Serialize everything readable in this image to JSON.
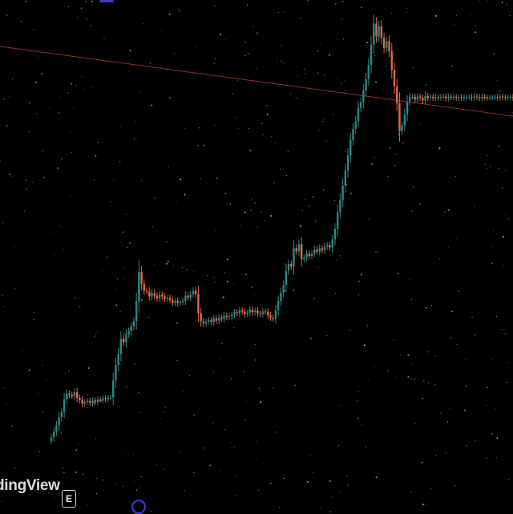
{
  "colors": {
    "background": "#000000",
    "up": "#2a8a86",
    "down": "#e06a44",
    "trendline": "#c0392b",
    "stars": "#9fb3d9"
  },
  "icons": {
    "badge": "E",
    "round_icon": "circle-icon"
  },
  "watermark": "dingView",
  "chart_data": {
    "type": "candlestick",
    "title": "",
    "xlabel": "",
    "ylabel": "",
    "ylim": [
      0,
      100
    ],
    "grid": false,
    "x": [
      0,
      1,
      2,
      3,
      4,
      5,
      6,
      7,
      8,
      9,
      10,
      11,
      12,
      13,
      14,
      15,
      16,
      17,
      18,
      19,
      20,
      21,
      22,
      23,
      24,
      25,
      26,
      27,
      28,
      29,
      30,
      31,
      32,
      33,
      34,
      35,
      36,
      37,
      38,
      39,
      40,
      41,
      42,
      43,
      44,
      45,
      46,
      47,
      48,
      49,
      50,
      51,
      52,
      53,
      54,
      55,
      56,
      57,
      58,
      59,
      60,
      61,
      62,
      63,
      64,
      65,
      66,
      67,
      68,
      69,
      70,
      71,
      72,
      73,
      74,
      75,
      76,
      77,
      78,
      79,
      80,
      81,
      82,
      83,
      84,
      85,
      86,
      87,
      88,
      89,
      90,
      91,
      92,
      93,
      94,
      95,
      96,
      97,
      98,
      99,
      100,
      101,
      102,
      103,
      104,
      105,
      106,
      107,
      108,
      109,
      110,
      111,
      112,
      113,
      114,
      115,
      116,
      117,
      118,
      119,
      120,
      121,
      122,
      123,
      124,
      125,
      126,
      127,
      128,
      129,
      130,
      131,
      132,
      133,
      134,
      135,
      136,
      137,
      138,
      139,
      140,
      141,
      142,
      143,
      144,
      145,
      146,
      147,
      148,
      149,
      150,
      151,
      152,
      153,
      154,
      155,
      156,
      157,
      158,
      159,
      160,
      161,
      162,
      163,
      164,
      165,
      166,
      167,
      168,
      169,
      170,
      171,
      172,
      173,
      174,
      175,
      176,
      177,
      178,
      179
    ],
    "close": [
      2.5,
      3.8,
      5.2,
      7.1,
      8.3,
      11.2,
      12.5,
      12.2,
      11.9,
      12.8,
      11.5,
      11.0,
      10.2,
      10.6,
      10.8,
      10.4,
      10.9,
      10.6,
      11.1,
      11.0,
      11.4,
      11.2,
      11.5,
      11.6,
      15.5,
      19.0,
      21.5,
      25.0,
      24.2,
      26.0,
      26.7,
      27.8,
      29.0,
      33.5,
      40.2,
      37.5,
      36.0,
      35.8,
      34.6,
      35.4,
      34.8,
      34.2,
      35.0,
      34.6,
      34.1,
      34.3,
      33.8,
      33.2,
      33.6,
      33.1,
      33.3,
      33.6,
      34.8,
      34.4,
      35.1,
      35.9,
      35.2,
      30.8,
      28.9,
      28.5,
      28.9,
      29.2,
      28.8,
      29.6,
      29.1,
      29.8,
      29.5,
      30.2,
      29.9,
      30.1,
      30.5,
      31.0,
      30.8,
      31.5,
      31.2,
      30.6,
      30.9,
      31.6,
      31.0,
      31.4,
      30.8,
      30.6,
      31.2,
      31.1,
      30.3,
      29.8,
      29.6,
      31.5,
      33.6,
      35.5,
      37.2,
      40.5,
      42.0,
      41.5,
      45.6,
      44.9,
      46.5,
      43.1,
      43.5,
      44.4,
      43.8,
      44.4,
      45.3,
      44.8,
      45.6,
      45.2,
      46.0,
      46.3,
      45.8,
      47.6,
      50.0,
      53.8,
      56.6,
      59.9,
      63.3,
      66.8,
      70.3,
      72.8,
      74.6,
      77.6,
      78.9,
      81.6,
      84.2,
      87.4,
      92.0,
      96.8,
      93.9,
      96.2,
      93.5,
      91.3,
      92.8,
      90.5,
      86.2,
      82.5,
      78.7,
      72.4,
      73.6,
      76.1,
      79.0,
      80.1,
      80.1,
      79.5,
      80.2,
      79.9,
      79.3,
      80.3,
      79.9,
      80.1,
      79.8,
      80.0,
      79.9,
      80.1,
      80.2,
      79.8,
      80.1,
      80.0,
      80.1,
      79.9,
      80.1,
      79.9,
      80.0,
      80.0,
      80.1,
      79.9,
      80.2,
      80.0,
      79.8,
      80.1,
      80.0,
      79.9,
      80.0,
      80.0,
      80.1,
      79.9,
      80.2,
      80.0,
      79.9,
      80.0,
      80.1,
      79.9
    ]
  }
}
